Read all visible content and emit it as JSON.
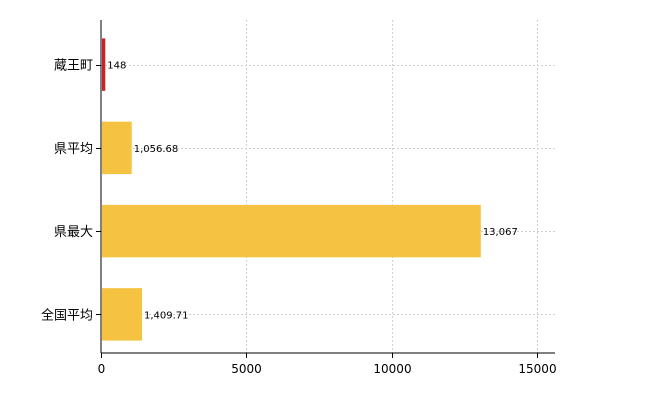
{
  "chart_data": {
    "type": "bar",
    "orientation": "horizontal",
    "categories": [
      "蔵王町",
      "県平均",
      "県最大",
      "全国平均"
    ],
    "values": [
      148,
      1056.68,
      13067,
      1409.71
    ],
    "data_labels": [
      "148",
      "1,056.68",
      "13,067",
      "1,409.71"
    ],
    "bar_colors": [
      "#cc2222",
      "#f5c242",
      "#f5c242",
      "#f5c242"
    ],
    "xlim": [
      0,
      15000
    ],
    "xticks": [
      "0",
      "5000",
      "10000",
      "15000"
    ],
    "xtick_values": [
      0,
      5000,
      10000,
      15000
    ],
    "grid": true,
    "title": "",
    "xlabel": "",
    "ylabel": ""
  }
}
